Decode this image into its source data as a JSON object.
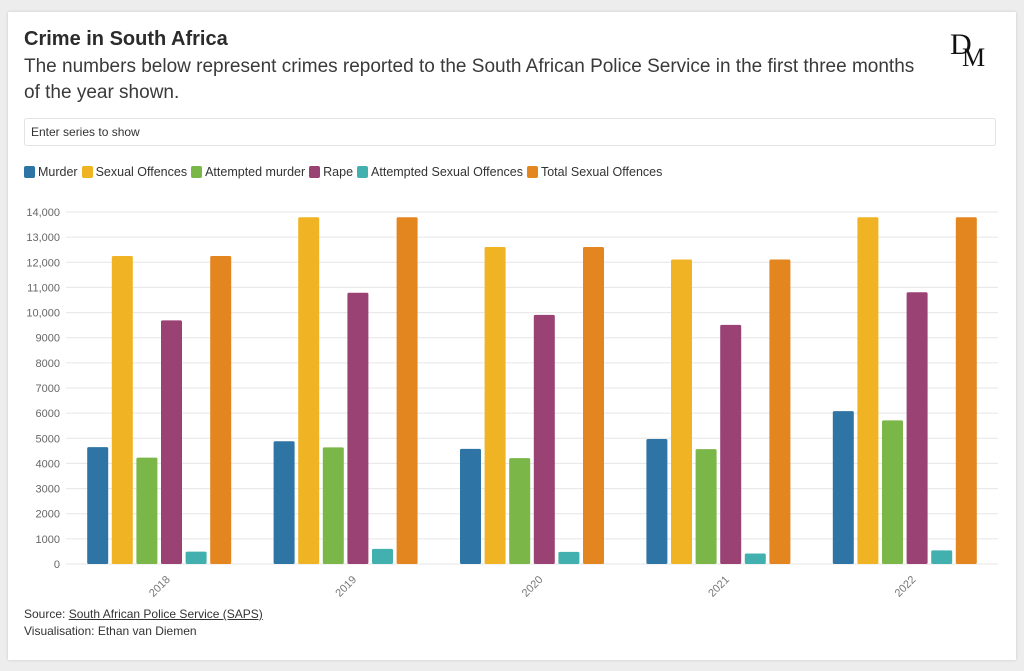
{
  "title": "Crime in South Africa",
  "subtitle": "The numbers below represent crimes reported to the South African Police Service in the first three months of the year shown.",
  "search": {
    "placeholder": "Enter series to show"
  },
  "logo": {
    "text": "DM",
    "icon": "daily-maverick-logo"
  },
  "footer": {
    "source_prefix": "Source: ",
    "source_link": "South African Police Service (SAPS)",
    "credit": "Visualisation: Ethan van Diemen"
  },
  "chart_data": {
    "type": "bar",
    "categories": [
      "2018",
      "2019",
      "2020",
      "2021",
      "2022"
    ],
    "ylim": [
      0,
      14000
    ],
    "yticks": [
      {
        "value": 0,
        "label": "0"
      },
      {
        "value": 1000,
        "label": "1000"
      },
      {
        "value": 2000,
        "label": "2000"
      },
      {
        "value": 3000,
        "label": "3000"
      },
      {
        "value": 4000,
        "label": "4000"
      },
      {
        "value": 5000,
        "label": "5000"
      },
      {
        "value": 6000,
        "label": "6000"
      },
      {
        "value": 7000,
        "label": "7000"
      },
      {
        "value": 8000,
        "label": "8000"
      },
      {
        "value": 9000,
        "label": "9000"
      },
      {
        "value": 10000,
        "label": "10,000"
      },
      {
        "value": 11000,
        "label": "11,000"
      },
      {
        "value": 12000,
        "label": "12,000"
      },
      {
        "value": 13000,
        "label": "13,000"
      },
      {
        "value": 14000,
        "label": "14,000"
      }
    ],
    "grid": true,
    "legend_position": "top-left",
    "series": [
      {
        "name": "Murder",
        "color": "#2e74a4",
        "values": [
          4650,
          4880,
          4580,
          4970,
          6080
        ]
      },
      {
        "name": "Sexual Offences",
        "color": "#f0b323",
        "values": [
          12250,
          13790,
          12610,
          12110,
          13790
        ]
      },
      {
        "name": "Attempted murder",
        "color": "#7ab648",
        "values": [
          4230,
          4640,
          4210,
          4570,
          5710
        ]
      },
      {
        "name": "Rape",
        "color": "#9b4275",
        "values": [
          9690,
          10790,
          9910,
          9510,
          10810
        ]
      },
      {
        "name": "Attempted Sexual Offences",
        "color": "#43b0b0",
        "values": [
          490,
          600,
          480,
          420,
          540
        ]
      },
      {
        "name": "Total Sexual Offences",
        "color": "#e3861f",
        "values": [
          12250,
          13790,
          12610,
          12110,
          13790
        ]
      }
    ]
  }
}
